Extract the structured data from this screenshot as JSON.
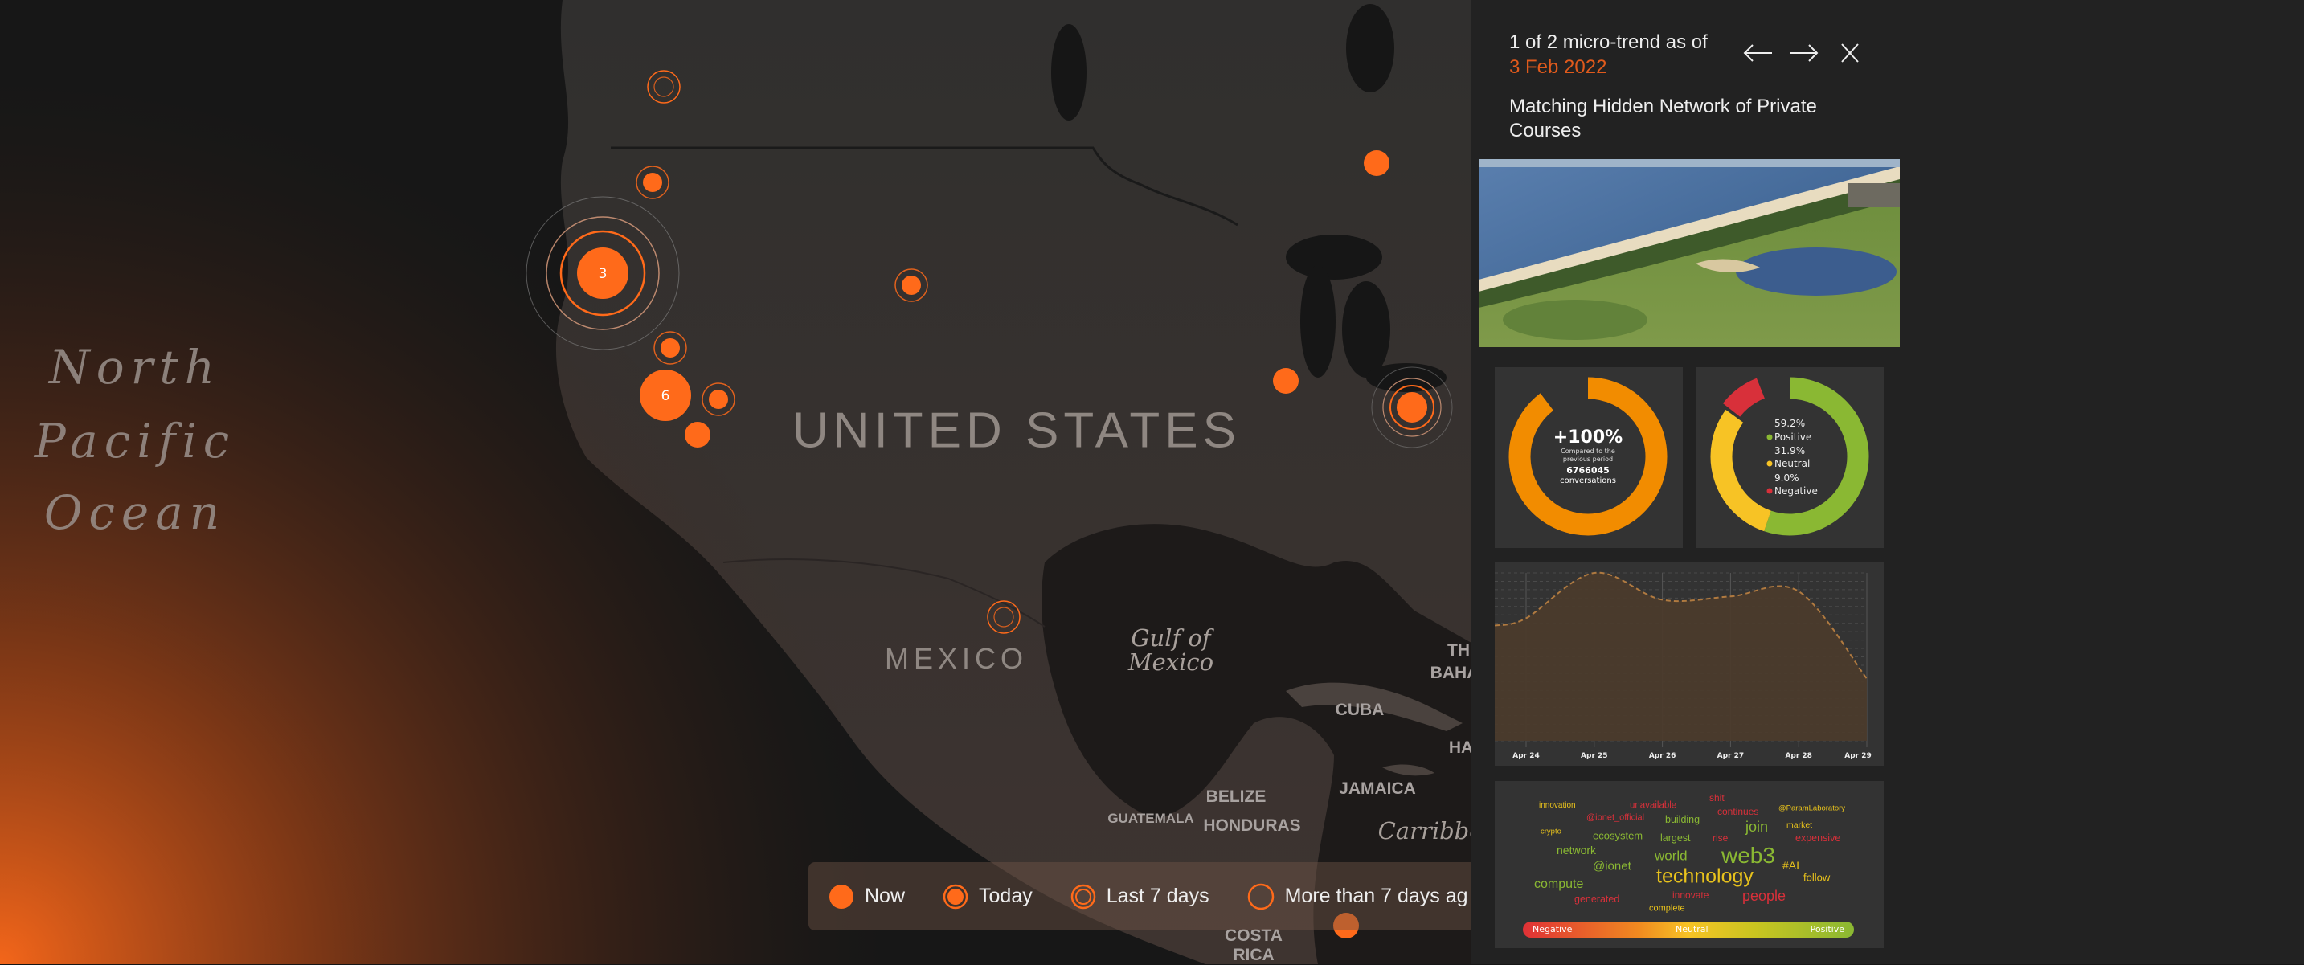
{
  "map": {
    "labels": {
      "ocean": [
        "North",
        "Pacific",
        "Ocean"
      ],
      "united_states": "UNITED STATES",
      "mexico": "MEXICO",
      "gulf": [
        "Gulf of",
        "Mexico"
      ],
      "cuba": "CUBA",
      "jamaica": "JAMAICA",
      "belize": "BELIZE",
      "guatemala": "GUATEMALA",
      "honduras": "HONDURAS",
      "caribbean": "Carribbe",
      "bahamas": [
        "TH",
        "BAHA"
      ],
      "haiti": "HA",
      "costa_rica": [
        "COSTA",
        "RICA"
      ]
    },
    "markers": [
      {
        "type": "last7",
        "count": null
      },
      {
        "type": "today",
        "count": null
      },
      {
        "type": "cluster",
        "count": "3"
      },
      {
        "type": "today",
        "count": null
      },
      {
        "type": "now",
        "count": null
      },
      {
        "type": "today",
        "count": null
      },
      {
        "type": "now-large",
        "count": "6"
      },
      {
        "type": "today",
        "count": null
      },
      {
        "type": "now",
        "count": null
      },
      {
        "type": "now",
        "count": null
      },
      {
        "type": "cluster-small",
        "count": null
      },
      {
        "type": "last7",
        "count": null
      },
      {
        "type": "now",
        "count": null
      }
    ],
    "accent": "#ff6a1a"
  },
  "legend": {
    "items": [
      {
        "icon": "now-dot-icon",
        "label": "Now"
      },
      {
        "icon": "today-dot-icon",
        "label": "Today"
      },
      {
        "icon": "last-7-days-ring-icon",
        "label": "Last 7 days"
      },
      {
        "icon": "older-ring-icon",
        "label": "More than 7 days ag"
      }
    ]
  },
  "panel": {
    "counter": "1 of 2 micro-trend as of",
    "date": "3 Feb 2022",
    "date_color": "#e05a1c",
    "prev_icon": "arrow-left-icon",
    "next_icon": "arrow-right-icon",
    "close_icon": "close-icon",
    "title": "Matching Hidden Network of Private Courses",
    "volume": {
      "change": "+100%",
      "compared_line1": "Compared to the",
      "compared_line2": "previous period",
      "count": "6766045",
      "count_label": "conversations",
      "color": "#f28c00"
    },
    "sentiment": [
      {
        "pct": "59.2%",
        "value": 59.2,
        "label": "Positive",
        "color": "#8ab833"
      },
      {
        "pct": "31.9%",
        "value": 31.9,
        "label": "Neutral",
        "color": "#f7c325"
      },
      {
        "pct": "9.0%",
        "value": 9.0,
        "label": "Negative",
        "color": "#d8303a"
      }
    ],
    "wordcloud": {
      "words": [
        {
          "text": "innovation",
          "color": "#e8c21c"
        },
        {
          "text": "unavailable",
          "color": "#d8303a"
        },
        {
          "text": "shit",
          "color": "#d8303a"
        },
        {
          "text": "continues",
          "color": "#d8303a"
        },
        {
          "text": "@ParamLaboratory",
          "color": "#e8c21c"
        },
        {
          "text": "@ionet_official",
          "color": "#d8303a"
        },
        {
          "text": "building",
          "color": "#8ab833"
        },
        {
          "text": "join",
          "color": "#8ab833"
        },
        {
          "text": "market",
          "color": "#e8c21c"
        },
        {
          "text": "crypto",
          "color": "#e8c21c"
        },
        {
          "text": "ecosystem",
          "color": "#8ab833"
        },
        {
          "text": "largest",
          "color": "#8ab833"
        },
        {
          "text": "rise",
          "color": "#d8303a"
        },
        {
          "text": "expensive",
          "color": "#d8303a"
        },
        {
          "text": "network",
          "color": "#8ab833"
        },
        {
          "text": "world",
          "color": "#8ab833"
        },
        {
          "text": "web3",
          "color": "#8ab833"
        },
        {
          "text": "#AI",
          "color": "#e8c21c"
        },
        {
          "text": "@ionet",
          "color": "#8ab833"
        },
        {
          "text": "technology",
          "color": "#e8c21c"
        },
        {
          "text": "follow",
          "color": "#e8c21c"
        },
        {
          "text": "compute",
          "color": "#8ab833"
        },
        {
          "text": "innovate",
          "color": "#d8303a"
        },
        {
          "text": "people",
          "color": "#d8303a"
        },
        {
          "text": "generated",
          "color": "#d8303a"
        },
        {
          "text": "complete",
          "color": "#e8c21c"
        }
      ],
      "scale": {
        "negative": "Negative",
        "neutral": "Neutral",
        "positive": "Positive"
      }
    }
  },
  "chart_data": {
    "type": "area",
    "categories": [
      "Apr 24",
      "Apr 25",
      "Apr 26",
      "Apr 27",
      "Apr 28",
      "Apr 29"
    ],
    "values": [
      0.73,
      1.0,
      0.84,
      0.86,
      0.89,
      0.37
    ],
    "ylim": [
      0,
      1
    ],
    "grid": true,
    "line_color": "#b07a40",
    "fill_color": "#4b3b2c"
  }
}
